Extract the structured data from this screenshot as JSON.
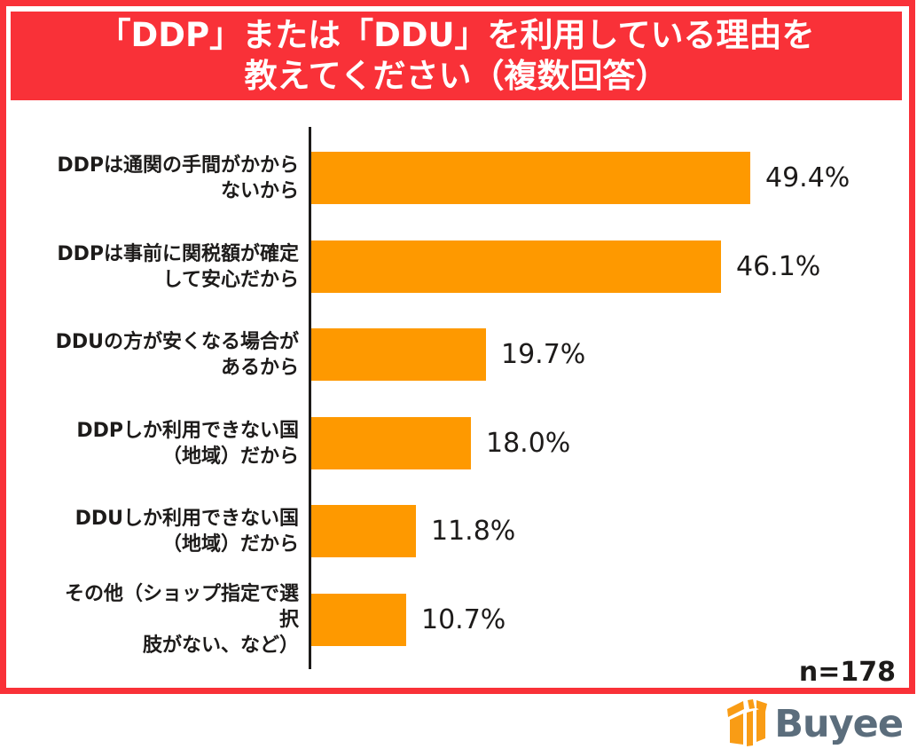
{
  "title": {
    "line1": "「DDP」または「DDU」を利用している理由を",
    "line2": "教えてください（複数回答）"
  },
  "chart_data": {
    "type": "bar",
    "orientation": "horizontal",
    "title": "「DDP」または「DDU」を利用している理由を教えてください（複数回答）",
    "categories": [
      "DDPは通関の手間がかからないから",
      "DDPは事前に関税額が確定して安心だから",
      "DDUの方が安くなる場合があるから",
      "DDPしか利用できない国（地域）だから",
      "DDUしか利用できない国（地域）だから",
      "その他（ショップ指定で選択肢がない、など）"
    ],
    "category_lines": [
      [
        "DDPは通関の手間がかから",
        "ないから"
      ],
      [
        "DDPは事前に関税額が確定",
        "して安心だから"
      ],
      [
        "DDUの方が安くなる場合が",
        "あるから"
      ],
      [
        "DDPしか利用できない国",
        "（地域）だから"
      ],
      [
        "DDUしか利用できない国",
        "（地域）だから"
      ],
      [
        "その他（ショップ指定で選択",
        "肢がない、など）"
      ]
    ],
    "values": [
      49.4,
      46.1,
      19.7,
      18.0,
      11.8,
      10.7
    ],
    "value_labels": [
      "49.4%",
      "46.1%",
      "19.7%",
      "18.0%",
      "11.8%",
      "10.7%"
    ],
    "xlim": [
      0,
      100
    ],
    "grid": false,
    "legend": false,
    "bar_color": "#fe9900"
  },
  "sample_size": "n=178",
  "logo": {
    "text": "Buyee",
    "icon": "gift-box-icon"
  },
  "colors": {
    "accent_red": "#f93138",
    "bar_orange": "#fe9900",
    "text_black": "#1d1b1a",
    "logo_gray_blue": "#5b6d7c",
    "background": "#ffffff"
  }
}
